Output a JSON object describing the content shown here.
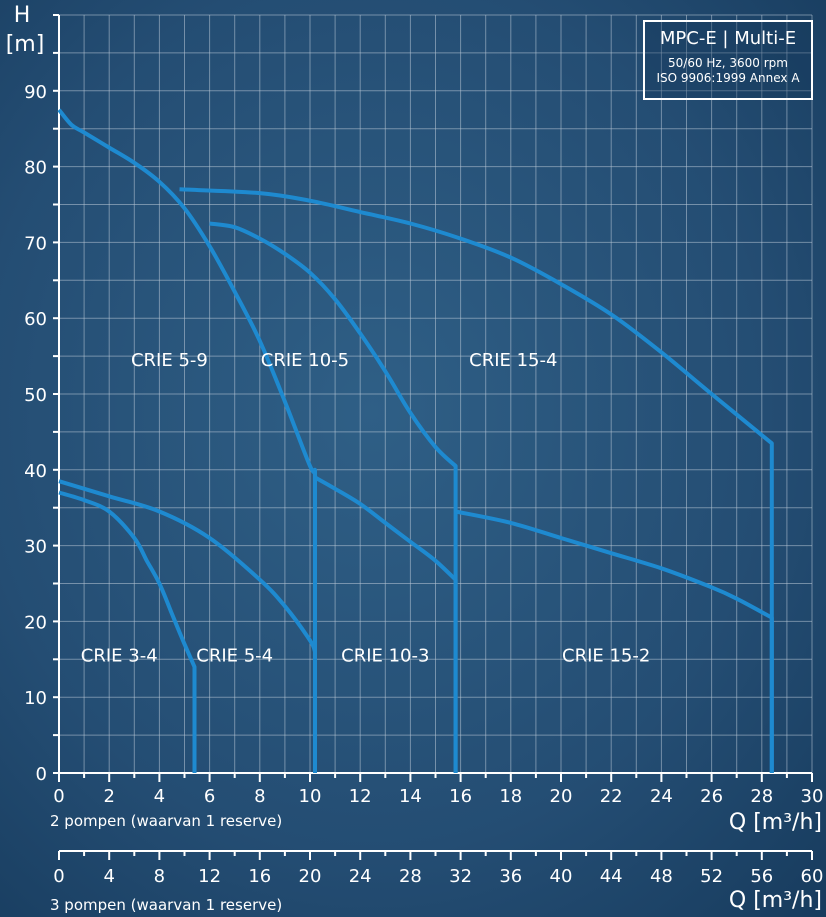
{
  "info_box": {
    "product": "MPC-E | Multi-E",
    "spec_line1": "50/60 Hz, 3600 rpm",
    "spec_line2": "ISO 9906:1999 Annex A"
  },
  "colors": {
    "background": "#1d4467",
    "curve": "#1e8ad0",
    "grid": "#b8c7d6",
    "text": "#ffffff"
  },
  "chart_data": {
    "type": "line",
    "ylabel_top": "H",
    "ylabel_unit": "[m]",
    "xlabel": "Q [m³/h]",
    "xlabel2": "Q [m³/h]",
    "caption1": "2 pompen (waarvan 1 reserve)",
    "caption2": "3 pompen (waarvan 1 reserve)",
    "xlim": [
      0,
      30
    ],
    "ylim": [
      0,
      100
    ],
    "xlim2": [
      0,
      60
    ],
    "x_ticks": [
      0,
      2,
      4,
      6,
      8,
      10,
      12,
      14,
      16,
      18,
      20,
      22,
      24,
      26,
      28,
      30
    ],
    "y_ticks": [
      0,
      10,
      20,
      30,
      40,
      50,
      60,
      70,
      80,
      90
    ],
    "x2_ticks": [
      0,
      4,
      8,
      12,
      16,
      20,
      24,
      28,
      32,
      36,
      40,
      44,
      48,
      52,
      56,
      60
    ],
    "grid": true,
    "series": [
      {
        "name": "CRIE 3-4",
        "points": [
          [
            0,
            37
          ],
          [
            1,
            36
          ],
          [
            2,
            34.5
          ],
          [
            3,
            31
          ],
          [
            3.5,
            28
          ],
          [
            4,
            25
          ],
          [
            4.5,
            21
          ],
          [
            5,
            17
          ],
          [
            5.4,
            14
          ],
          [
            5.4,
            0
          ]
        ]
      },
      {
        "name": "CRIE 5-4",
        "points": [
          [
            0,
            38.5
          ],
          [
            2,
            36.5
          ],
          [
            4,
            34.5
          ],
          [
            6,
            31
          ],
          [
            8,
            25.5
          ],
          [
            9,
            22
          ],
          [
            10,
            17.5
          ],
          [
            10.2,
            16
          ],
          [
            10.2,
            0
          ]
        ]
      },
      {
        "name": "CRIE 5-9",
        "points": [
          [
            0,
            87.5
          ],
          [
            0.5,
            85.5
          ],
          [
            1,
            84.5
          ],
          [
            2,
            82.5
          ],
          [
            3,
            80.5
          ],
          [
            4,
            78
          ],
          [
            5,
            74.5
          ],
          [
            6,
            69.5
          ],
          [
            7,
            63.5
          ],
          [
            8,
            57
          ],
          [
            9,
            49
          ],
          [
            10,
            40.5
          ],
          [
            10.2,
            40
          ],
          [
            10.2,
            0
          ]
        ]
      },
      {
        "name": "CRIE 10-3",
        "points": [
          [
            10.2,
            39
          ],
          [
            11,
            37.5
          ],
          [
            12,
            35.5
          ],
          [
            13,
            33
          ],
          [
            14,
            30.5
          ],
          [
            15,
            28
          ],
          [
            15.8,
            25.5
          ],
          [
            15.8,
            0
          ]
        ]
      },
      {
        "name": "CRIE 10-5",
        "points": [
          [
            6,
            72.5
          ],
          [
            7,
            72
          ],
          [
            8,
            70.5
          ],
          [
            9,
            68.5
          ],
          [
            10,
            66
          ],
          [
            11,
            62.5
          ],
          [
            12,
            58
          ],
          [
            13,
            53
          ],
          [
            14,
            47.5
          ],
          [
            15,
            43
          ],
          [
            15.8,
            40.5
          ],
          [
            15.8,
            0
          ]
        ]
      },
      {
        "name": "CRIE 15-2",
        "points": [
          [
            15.8,
            34.5
          ],
          [
            18,
            33
          ],
          [
            20,
            31
          ],
          [
            22,
            29
          ],
          [
            24,
            27
          ],
          [
            26,
            24.5
          ],
          [
            27,
            23
          ],
          [
            28.4,
            20.5
          ],
          [
            28.4,
            0
          ]
        ]
      },
      {
        "name": "CRIE 15-4",
        "points": [
          [
            4.8,
            77
          ],
          [
            8,
            76.5
          ],
          [
            10,
            75.5
          ],
          [
            12,
            74
          ],
          [
            14,
            72.5
          ],
          [
            16,
            70.5
          ],
          [
            18,
            68
          ],
          [
            20,
            64.5
          ],
          [
            22,
            60.5
          ],
          [
            24,
            55.5
          ],
          [
            26,
            50
          ],
          [
            28.4,
            43.5
          ],
          [
            28.4,
            0
          ]
        ]
      }
    ],
    "region_labels": [
      {
        "text": "CRIE 5-9",
        "x": 4.4,
        "y": 54.5
      },
      {
        "text": "CRIE 10-5",
        "x": 9.8,
        "y": 54.5
      },
      {
        "text": "CRIE 15-4",
        "x": 18.1,
        "y": 54.5
      },
      {
        "text": "CRIE 3-4",
        "x": 2.4,
        "y": 15.5
      },
      {
        "text": "CRIE 5-4",
        "x": 7.0,
        "y": 15.5
      },
      {
        "text": "CRIE 10-3",
        "x": 13.0,
        "y": 15.5
      },
      {
        "text": "CRIE 15-2",
        "x": 21.8,
        "y": 15.5
      }
    ]
  }
}
